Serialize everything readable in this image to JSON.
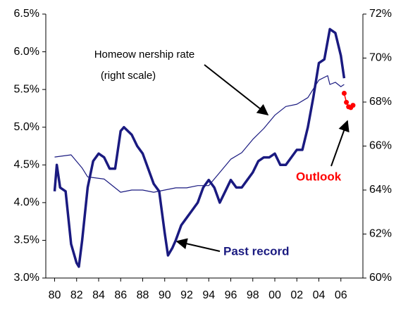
{
  "chart_data": {
    "type": "line",
    "annotations": [
      "Homeow nership rate",
      "(right scale)",
      "Outlook",
      "Past record"
    ],
    "xlim": [
      1979.2,
      2008.0
    ],
    "xticks": [
      {
        "value": 1980,
        "label": "80"
      },
      {
        "value": 1982,
        "label": "82"
      },
      {
        "value": 1984,
        "label": "84"
      },
      {
        "value": 1986,
        "label": "86"
      },
      {
        "value": 1988,
        "label": "88"
      },
      {
        "value": 1990,
        "label": "90"
      },
      {
        "value": 1992,
        "label": "92"
      },
      {
        "value": 1994,
        "label": "94"
      },
      {
        "value": 1996,
        "label": "96"
      },
      {
        "value": 1998,
        "label": "98"
      },
      {
        "value": 2000,
        "label": "00"
      },
      {
        "value": 2002,
        "label": "02"
      },
      {
        "value": 2004,
        "label": "04"
      },
      {
        "value": 2006,
        "label": "06"
      }
    ],
    "ylim": [
      3.0,
      6.5
    ],
    "yticks": [
      {
        "value": 3.0,
        "label": "3.0%"
      },
      {
        "value": 3.5,
        "label": "3.5%"
      },
      {
        "value": 4.0,
        "label": "4.0%"
      },
      {
        "value": 4.5,
        "label": "4.5%"
      },
      {
        "value": 5.0,
        "label": "5.0%"
      },
      {
        "value": 5.5,
        "label": "5.5%"
      },
      {
        "value": 6.0,
        "label": "6.0%"
      },
      {
        "value": 6.5,
        "label": "6.5%"
      }
    ],
    "y2lim": [
      60,
      72
    ],
    "y2ticks": [
      {
        "value": 60,
        "label": "60%"
      },
      {
        "value": 62,
        "label": "62%"
      },
      {
        "value": 64,
        "label": "64%"
      },
      {
        "value": 66,
        "label": "66%"
      },
      {
        "value": 68,
        "label": "68%"
      },
      {
        "value": 70,
        "label": "70%"
      },
      {
        "value": 72,
        "label": "72%"
      }
    ],
    "series": [
      {
        "color": "#1a1a80",
        "width": 3.5,
        "x": [
          1980.0,
          1980.2,
          1980.5,
          1981.0,
          1981.5,
          1982.0,
          1982.2,
          1982.5,
          1983.0,
          1983.5,
          1984.0,
          1984.5,
          1985.0,
          1985.5,
          1986.0,
          1986.3,
          1987.0,
          1987.5,
          1988.0,
          1988.5,
          1989.0,
          1989.5,
          1990.0,
          1990.3,
          1990.7,
          1991.0,
          1991.5,
          1992.0,
          1992.5,
          1993.0,
          1993.5,
          1994.0,
          1994.5,
          1995.0,
          1995.5,
          1996.0,
          1996.5,
          1997.0,
          1997.5,
          1998.0,
          1998.5,
          1999.0,
          1999.5,
          2000.0,
          2000.5,
          2001.0,
          2001.5,
          2002.0,
          2002.5,
          2003.0,
          2003.5,
          2004.0,
          2004.5,
          2005.0,
          2005.5,
          2006.0,
          2006.3
        ],
        "values": [
          4.15,
          4.5,
          4.2,
          4.15,
          3.45,
          3.2,
          3.15,
          3.5,
          4.2,
          4.55,
          4.65,
          4.6,
          4.45,
          4.45,
          4.95,
          5.0,
          4.9,
          4.75,
          4.65,
          4.45,
          4.25,
          4.15,
          3.6,
          3.3,
          3.4,
          3.5,
          3.7,
          3.8,
          3.9,
          4.0,
          4.2,
          4.3,
          4.2,
          4.0,
          4.15,
          4.3,
          4.2,
          4.2,
          4.3,
          4.4,
          4.55,
          4.6,
          4.6,
          4.65,
          4.5,
          4.5,
          4.6,
          4.7,
          4.7,
          5.0,
          5.4,
          5.85,
          5.9,
          6.3,
          6.25,
          5.95,
          5.65
        ]
      },
      {
        "color": "#1a1a80",
        "width": 1.2,
        "axis": "y2",
        "x": [
          1980.0,
          1981.5,
          1982.5,
          1983.0,
          1984.5,
          1985.0,
          1986.0,
          1987.0,
          1988.0,
          1989.0,
          1990.0,
          1991.0,
          1992.0,
          1993.0,
          1994.0,
          1995.0,
          1996.0,
          1997.0,
          1998.0,
          1999.0,
          2000.0,
          2001.0,
          2002.0,
          2003.0,
          2004.0,
          2004.8,
          2005.0,
          2005.5,
          2006.0,
          2006.3
        ],
        "values": [
          65.5,
          65.6,
          65.0,
          64.6,
          64.5,
          64.3,
          63.9,
          64.0,
          64.0,
          63.9,
          64.0,
          64.1,
          64.1,
          64.2,
          64.2,
          64.8,
          65.4,
          65.7,
          66.3,
          66.8,
          67.4,
          67.8,
          67.9,
          68.2,
          69.0,
          69.2,
          68.8,
          68.9,
          68.7,
          68.8
        ]
      },
      {
        "color": "#ff0000",
        "width": 1.5,
        "markers": true,
        "x": [
          2006.3,
          2006.5,
          2006.7,
          2006.9,
          2007.1
        ],
        "values": [
          5.45,
          5.33,
          5.27,
          5.26,
          5.29
        ]
      }
    ]
  }
}
